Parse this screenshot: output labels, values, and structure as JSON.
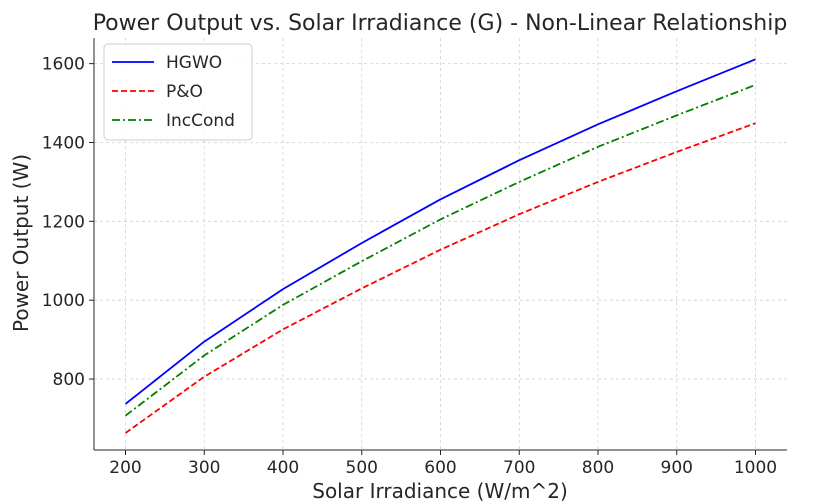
{
  "chart_data": {
    "type": "line",
    "title": "Power Output vs. Solar Irradiance (G) - Non-Linear Relationship",
    "xlabel": "Solar Irradiance (W/m^2)",
    "ylabel": "Power Output (W)",
    "x_ticks": [
      200,
      300,
      400,
      500,
      600,
      700,
      800,
      900,
      1000
    ],
    "y_ticks": [
      800,
      1000,
      1200,
      1400,
      1600
    ],
    "xlim": [
      160,
      1040
    ],
    "ylim": [
      620,
      1665
    ],
    "grid": true,
    "legend_position": "top-left",
    "x": [
      200,
      300,
      400,
      500,
      600,
      700,
      800,
      900,
      1000
    ],
    "series": [
      {
        "name": "HGWO",
        "color": "#0000ff",
        "dash": "solid",
        "values": [
          737,
          895,
          1028,
          1145,
          1256,
          1355,
          1446,
          1530,
          1611
        ]
      },
      {
        "name": "P&O",
        "color": "#ff0000",
        "dash": "dashed",
        "values": [
          663,
          806,
          926,
          1030,
          1128,
          1218,
          1300,
          1376,
          1449
        ]
      },
      {
        "name": "IncCond",
        "color": "#008000",
        "dash": "dashdot",
        "values": [
          707,
          860,
          988,
          1099,
          1205,
          1300,
          1389,
          1469,
          1546
        ]
      }
    ]
  }
}
